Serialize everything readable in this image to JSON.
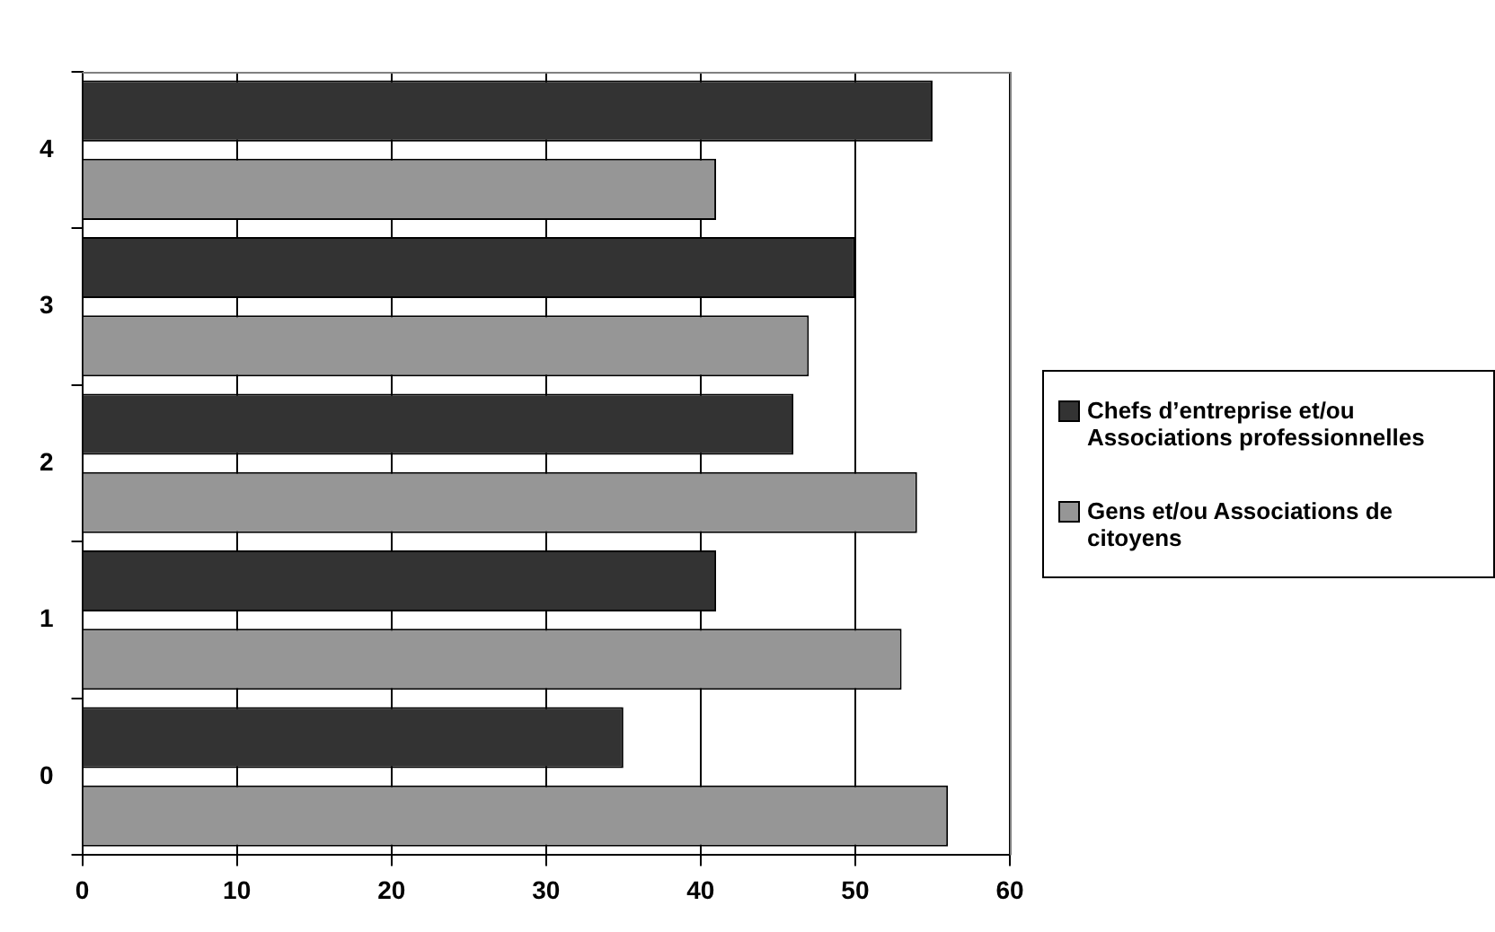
{
  "chart_data": {
    "type": "bar",
    "orientation": "horizontal",
    "categories": [
      "4",
      "3",
      "2",
      "1",
      "0"
    ],
    "series": [
      {
        "name": "Chefs d’entreprise et/ou Associations professionnelles",
        "color": "#333333",
        "values": [
          55,
          50,
          46,
          41,
          35
        ]
      },
      {
        "name": "Gens et/ou Associations de citoyens",
        "color": "#969696",
        "values": [
          41,
          47,
          54,
          53,
          56
        ]
      }
    ],
    "xlim": [
      0,
      60
    ],
    "xticks": [
      0,
      10,
      20,
      30,
      40,
      50,
      60
    ],
    "grid": "x",
    "legend": "right"
  }
}
